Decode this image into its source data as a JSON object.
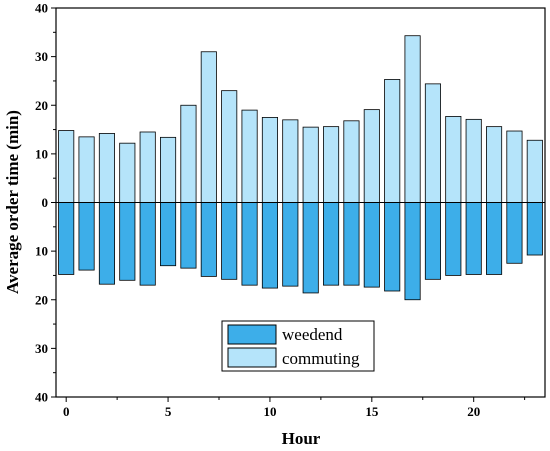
{
  "chart_data": {
    "type": "bar",
    "xlabel": "Hour",
    "ylabel": "Average order time (min)",
    "x": [
      0,
      1,
      2,
      3,
      4,
      5,
      6,
      7,
      8,
      9,
      10,
      11,
      12,
      13,
      14,
      15,
      16,
      17,
      18,
      19,
      20,
      21,
      22,
      23
    ],
    "xlim": [
      -0.5,
      23.5
    ],
    "ylim": [
      -40,
      40
    ],
    "xticks": [
      0,
      5,
      10,
      15,
      20
    ],
    "xtick_labels": [
      "0",
      "5",
      "10",
      "15",
      "20"
    ],
    "yticks": [
      40,
      30,
      20,
      10,
      0,
      -10,
      -20,
      -30,
      -40
    ],
    "ytick_labels": [
      "40",
      "30",
      "20",
      "10",
      "0",
      "10",
      "20",
      "30",
      "40"
    ],
    "series": [
      {
        "name": "weedend",
        "color": "#3DAEE9",
        "direction": "down",
        "values": [
          14.8,
          13.9,
          16.8,
          16.0,
          17.0,
          13.0,
          13.5,
          15.2,
          15.8,
          17.0,
          17.6,
          17.2,
          18.6,
          17.0,
          17.0,
          17.4,
          18.2,
          20.0,
          15.8,
          15.0,
          14.8,
          14.8,
          12.5,
          10.8
        ]
      },
      {
        "name": "commuting",
        "color": "#B5E4FA",
        "direction": "up",
        "values": [
          14.8,
          13.5,
          14.2,
          12.2,
          14.5,
          13.4,
          20.0,
          31.0,
          23.0,
          19.0,
          17.5,
          17.0,
          15.5,
          15.6,
          16.8,
          19.1,
          25.3,
          34.3,
          24.4,
          17.7,
          17.1,
          15.6,
          14.7,
          12.8
        ]
      }
    ],
    "legend": {
      "position": "bottom-center",
      "entries": [
        "weedend",
        "commuting"
      ]
    },
    "grid": false
  }
}
